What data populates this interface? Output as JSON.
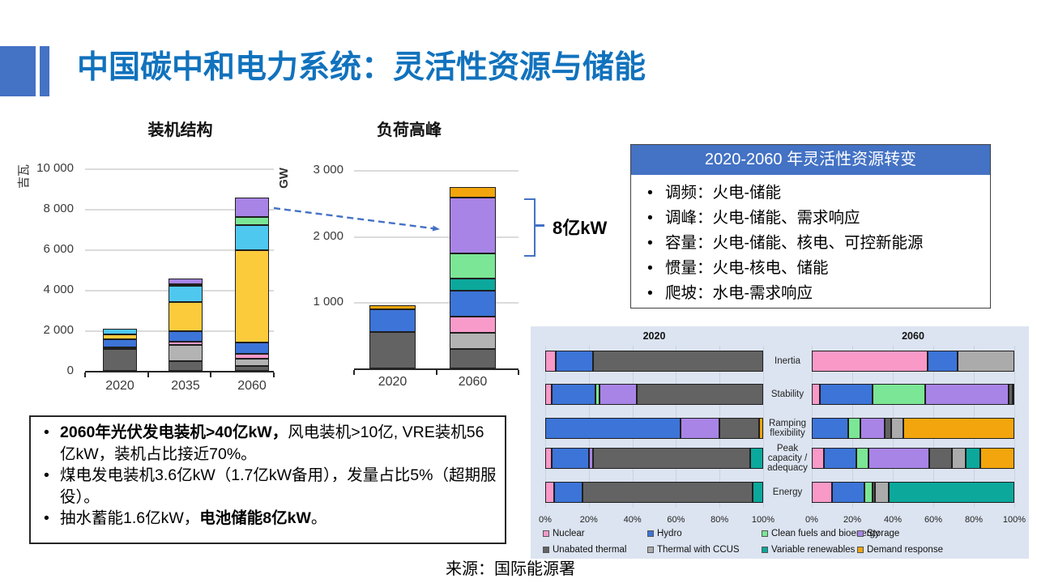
{
  "page": {
    "title": "中国碳中和电力系统：灵活性资源与储能",
    "source": "来源：国际能源署"
  },
  "colors": {
    "title_text": "#1172BD",
    "accent": "#4472C4",
    "panel_bg": "#DCE4F1",
    "segment": {
      "dark-gray": "#636363",
      "light-gray": "#B3B3B3",
      "pink": "#F89BCB",
      "blue": "#3C74D8",
      "yellow": "#FCCB3C",
      "cyan": "#4FC8F0",
      "green": "#7BE695",
      "purple": "#A884E6",
      "teal": "#0CA89C",
      "orange": "#F2A50C"
    }
  },
  "callout": {
    "label": "8亿kW"
  },
  "flex_box": {
    "header": "2020-2060 年灵活性资源转变",
    "items": [
      "调频：火电-储能",
      "调峰：火电-储能、需求响应",
      "容量：火电-储能、核电、可控新能源",
      "惯量：火电-核电、储能",
      "爬坡：水电-需求响应"
    ]
  },
  "notes": {
    "items": [
      {
        "runs": [
          {
            "text": "2060年光伏发电装机>40亿kW，",
            "bold": true
          },
          {
            "text": "风电装机>10亿, VRE装机56亿kW，装机占比接近70%。",
            "bold": false
          }
        ]
      },
      {
        "runs": [
          {
            "text": "煤电发电装机3.6亿kW（1.7亿kW备用），发量占比5%（超期服役）。",
            "bold": false
          }
        ]
      },
      {
        "runs": [
          {
            "text": "抽水蓄能1.6亿kW，",
            "bold": false
          },
          {
            "text": "电池储能8亿kW",
            "bold": true
          },
          {
            "text": "。",
            "bold": false
          }
        ]
      }
    ]
  },
  "chart_data": [
    {
      "id": "installed-capacity",
      "type": "bar",
      "stacked": true,
      "title": "装机结构",
      "ylabel": "吉瓦",
      "ylim": [
        0,
        10000
      ],
      "grid": true,
      "yticks": [
        {
          "value": 0,
          "label": "0"
        },
        {
          "value": 2000,
          "label": "2 000"
        },
        {
          "value": 4000,
          "label": "4 000"
        },
        {
          "value": 6000,
          "label": "6 000"
        },
        {
          "value": 8000,
          "label": "8 000"
        },
        {
          "value": 10000,
          "label": "10 000"
        }
      ],
      "categories": [
        "2020",
        "2035",
        "2060"
      ],
      "series": [
        {
          "color": "dark-gray",
          "values": [
            1100,
            500,
            250
          ]
        },
        {
          "color": "light-gray",
          "values": [
            0,
            800,
            350
          ]
        },
        {
          "color": "pink",
          "values": [
            50,
            150,
            250
          ]
        },
        {
          "color": "blue",
          "values": [
            400,
            500,
            550
          ]
        },
        {
          "color": "yellow",
          "values": [
            260,
            1450,
            4550
          ]
        },
        {
          "color": "cyan",
          "values": [
            290,
            800,
            1250
          ]
        },
        {
          "color": "green",
          "values": [
            0,
            100,
            400
          ]
        },
        {
          "color": "purple",
          "values": [
            0,
            250,
            950
          ]
        }
      ]
    },
    {
      "id": "peak-load",
      "type": "bar",
      "stacked": true,
      "title": "负荷高峰",
      "ylabel": "GW",
      "ylim": [
        0,
        3000
      ],
      "grid": true,
      "yticks": [
        {
          "value": 1000,
          "label": "1 000"
        },
        {
          "value": 2000,
          "label": "2 000"
        },
        {
          "value": 3000,
          "label": "3 000"
        }
      ],
      "categories": [
        "2020",
        "2060"
      ],
      "series": [
        {
          "color": "dark-gray",
          "values": [
            550,
            290
          ]
        },
        {
          "color": "light-gray",
          "values": [
            0,
            250
          ]
        },
        {
          "color": "pink",
          "values": [
            0,
            240
          ]
        },
        {
          "color": "blue",
          "values": [
            350,
            390
          ]
        },
        {
          "color": "teal",
          "values": [
            0,
            190
          ]
        },
        {
          "color": "green",
          "values": [
            0,
            380
          ]
        },
        {
          "color": "purple",
          "values": [
            0,
            840
          ]
        },
        {
          "color": "orange",
          "values": [
            60,
            160
          ]
        }
      ]
    },
    {
      "id": "flexibility-services-mix",
      "type": "bar",
      "orientation": "horizontal",
      "stacked_percent": true,
      "group_titles": [
        "2020",
        "2060"
      ],
      "xticks": [
        "0%",
        "20%",
        "40%",
        "60%",
        "80%",
        "100%"
      ],
      "legend": [
        {
          "label": "Nuclear",
          "color": "#F899C8"
        },
        {
          "label": "Hydro",
          "color": "#3C74D8"
        },
        {
          "label": "Clean fuels and bioenergy",
          "color": "#7BE695"
        },
        {
          "label": "Storage",
          "color": "#A884E6"
        },
        {
          "label": "Unabated thermal",
          "color": "#636363"
        },
        {
          "label": "Thermal with CCUS",
          "color": "#ABABAB"
        },
        {
          "label": "Variable renewables",
          "color": "#0CA89C"
        },
        {
          "label": "Demand response",
          "color": "#F2A50C"
        }
      ],
      "rows": [
        {
          "label": "Inertia",
          "g2020": [
            [
              "Nuclear",
              5
            ],
            [
              "Hydro",
              17
            ],
            [
              "Unabated thermal",
              78
            ]
          ],
          "g2060": [
            [
              "Nuclear",
              57
            ],
            [
              "Hydro",
              15
            ],
            [
              "Thermal with CCUS",
              28
            ]
          ]
        },
        {
          "label": "Stability",
          "g2020": [
            [
              "Nuclear",
              3
            ],
            [
              "Hydro",
              20
            ],
            [
              "Clean fuels and bioenergy",
              2
            ],
            [
              "Storage",
              17
            ],
            [
              "Unabated thermal",
              58
            ]
          ],
          "g2060": [
            [
              "Nuclear",
              4
            ],
            [
              "Hydro",
              26
            ],
            [
              "Clean fuels and bioenergy",
              26
            ],
            [
              "Storage",
              41
            ],
            [
              "Unabated thermal",
              2
            ],
            [
              "Thermal with CCUS",
              1
            ]
          ]
        },
        {
          "label": "Ramping flexibility",
          "g2020": [
            [
              "Hydro",
              62
            ],
            [
              "Storage",
              18
            ],
            [
              "Unabated thermal",
              18
            ],
            [
              "Demand response",
              2
            ]
          ],
          "g2060": [
            [
              "Hydro",
              18
            ],
            [
              "Clean fuels and bioenergy",
              6
            ],
            [
              "Storage",
              12
            ],
            [
              "Unabated thermal",
              3
            ],
            [
              "Thermal with CCUS",
              6
            ],
            [
              "Demand response",
              55
            ]
          ]
        },
        {
          "label": "Peak capacity / adequacy",
          "g2020": [
            [
              "Nuclear",
              3
            ],
            [
              "Hydro",
              17
            ],
            [
              "Storage",
              2
            ],
            [
              "Unabated thermal",
              72
            ],
            [
              "Variable renewables",
              6
            ]
          ],
          "g2060": [
            [
              "Nuclear",
              6
            ],
            [
              "Hydro",
              16
            ],
            [
              "Clean fuels and bioenergy",
              6
            ],
            [
              "Storage",
              30
            ],
            [
              "Unabated thermal",
              11
            ],
            [
              "Thermal with CCUS",
              7
            ],
            [
              "Variable renewables",
              7
            ],
            [
              "Demand response",
              17
            ]
          ]
        },
        {
          "label": "Energy",
          "g2020": [
            [
              "Nuclear",
              4
            ],
            [
              "Hydro",
              13
            ],
            [
              "Unabated thermal",
              78
            ],
            [
              "Variable renewables",
              5
            ]
          ],
          "g2060": [
            [
              "Nuclear",
              10
            ],
            [
              "Hydro",
              16
            ],
            [
              "Clean fuels and bioenergy",
              4
            ],
            [
              "Unabated thermal",
              1
            ],
            [
              "Thermal with CCUS",
              7
            ],
            [
              "Variable renewables",
              62
            ]
          ]
        }
      ]
    }
  ]
}
